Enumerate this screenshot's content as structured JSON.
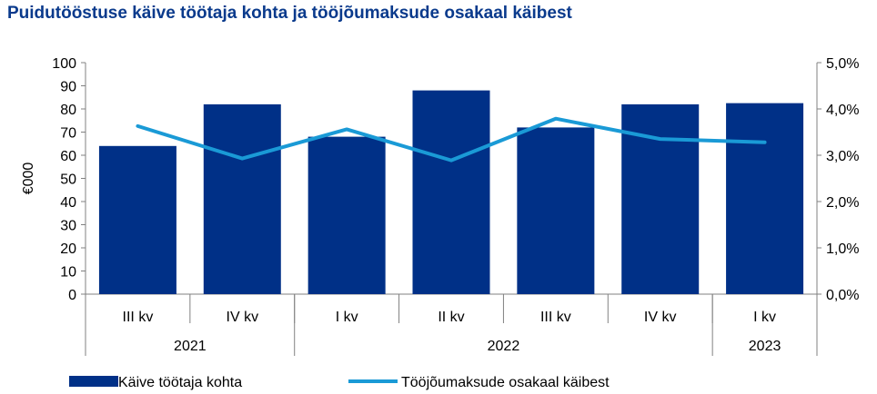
{
  "chart_data": {
    "type": "bar",
    "title": "Puidutööstuse käive töötaja kohta ja tööjõumaksude osakaal käibest",
    "ylabel": "€000",
    "ylim": [
      0,
      100
    ],
    "y_ticks": [
      "0",
      "10",
      "20",
      "30",
      "40",
      "50",
      "60",
      "70",
      "80",
      "90",
      "100"
    ],
    "y2lim": [
      0,
      5
    ],
    "y2_ticks": [
      "0,0%",
      "1,0%",
      "2,0%",
      "3,0%",
      "4,0%",
      "5,0%"
    ],
    "categories": [
      "III kv",
      "IV kv",
      "I kv",
      "II kv",
      "III kv",
      "IV kv",
      "I kv"
    ],
    "year_groups": [
      {
        "label": "2021",
        "span": 2
      },
      {
        "label": "2022",
        "span": 4
      },
      {
        "label": "2023",
        "span": 1
      }
    ],
    "grid": false,
    "legend_position": "bottom",
    "series": [
      {
        "name": "Käive töötaja kohta",
        "kind": "bar",
        "axis": "left",
        "color": "#003087",
        "values": [
          64,
          82,
          68,
          88,
          72,
          82,
          82.5
        ]
      },
      {
        "name": "Tööjõumaksude osakaal käibest",
        "kind": "line",
        "axis": "right",
        "color": "#1a9ad6",
        "values": [
          3.63,
          2.93,
          3.56,
          2.89,
          3.79,
          3.35,
          3.28
        ]
      }
    ]
  }
}
